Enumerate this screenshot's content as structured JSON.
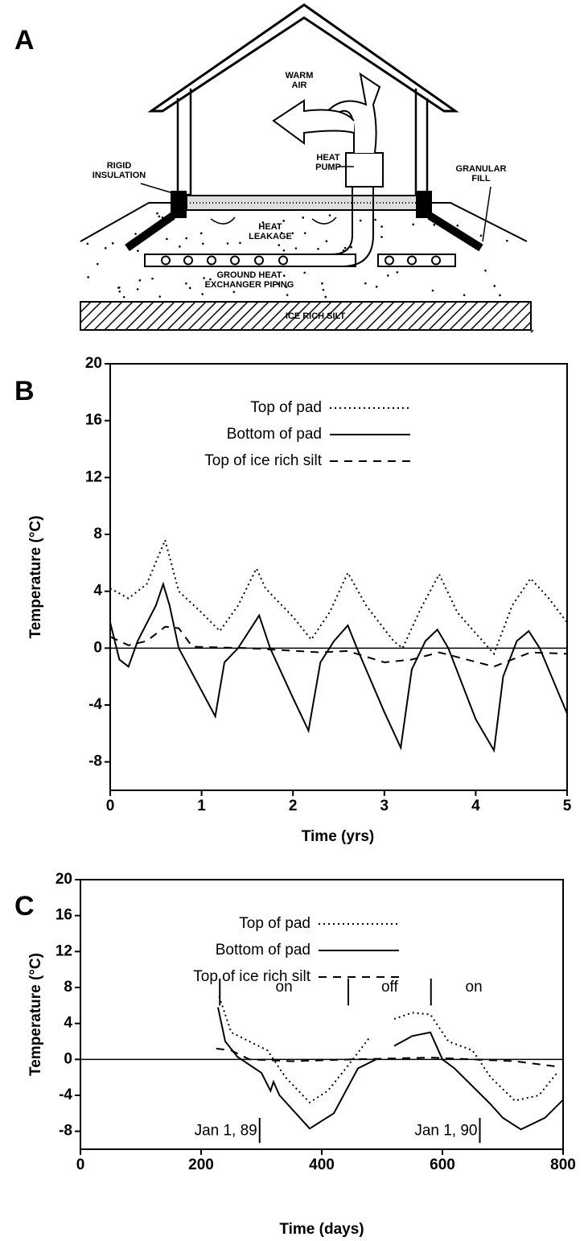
{
  "diagram": {
    "panel": "A",
    "labels": {
      "warm_air": [
        "WARM",
        "AIR"
      ],
      "heat_pump": [
        "HEAT",
        "PUMP"
      ],
      "rigid_insulation": [
        "RIGID",
        "INSULATION"
      ],
      "granular_fill": [
        "GRANULAR",
        "FILL"
      ],
      "heat_leakage": [
        "HEAT",
        "LEAKAGE"
      ],
      "piping": [
        "GROUND HEAT",
        "EXCHANGER PIPING"
      ],
      "silt": [
        "ICE RICH SILT"
      ]
    }
  },
  "chart_data": [
    {
      "type": "line",
      "panel": "B",
      "x_label": "Time (yrs)",
      "y_label": "Temperature (°C)",
      "xlim": [
        0,
        5
      ],
      "xticks": [
        0,
        1,
        2,
        3,
        4,
        5
      ],
      "ylim": [
        -10,
        20
      ],
      "yticks": [
        -8,
        -4,
        0,
        4,
        8,
        12,
        16,
        20
      ],
      "zero_line": true,
      "series": [
        {
          "name": "Top of pad",
          "color": "#000000",
          "style": "dotted",
          "x": [
            0,
            0.2,
            0.4,
            0.6,
            0.75,
            1.0,
            1.2,
            1.4,
            1.6,
            1.7,
            2.0,
            2.2,
            2.4,
            2.6,
            2.8,
            3.1,
            3.2,
            3.4,
            3.6,
            3.8,
            4.2,
            4.4,
            4.6,
            4.8,
            5
          ],
          "values": [
            4.2,
            3.5,
            4.5,
            7.6,
            4,
            2.5,
            1.2,
            3,
            5.6,
            4.2,
            2.2,
            0.6,
            2.5,
            5.3,
            3,
            0.5,
            0,
            2.8,
            5.2,
            2.5,
            -0.4,
            3,
            4.9,
            3.5,
            1.8
          ]
        },
        {
          "name": "Bottom of pad",
          "color": "#000000",
          "style": "solid",
          "x": [
            0,
            0.1,
            0.2,
            0.3,
            0.5,
            0.58,
            0.65,
            0.75,
            1.0,
            1.15,
            1.25,
            1.4,
            1.55,
            1.63,
            1.75,
            2.0,
            2.17,
            2.3,
            2.45,
            2.6,
            2.7,
            3.0,
            3.18,
            3.3,
            3.45,
            3.58,
            3.7,
            4.0,
            4.2,
            4.3,
            4.45,
            4.58,
            4.7,
            5
          ],
          "values": [
            1.8,
            -0.8,
            -1.3,
            0.5,
            3,
            4.5,
            3,
            0,
            -3,
            -4.8,
            -1,
            0,
            1.5,
            2.3,
            0,
            -3.5,
            -5.8,
            -1,
            0.5,
            1.6,
            0,
            -4.5,
            -7,
            -1.5,
            0.5,
            1.3,
            0,
            -5,
            -7.2,
            -2,
            0.5,
            1.2,
            0,
            -4.6
          ]
        },
        {
          "name": "Top of ice rich silt",
          "color": "#000000",
          "style": "dashed",
          "x": [
            0,
            0.2,
            0.4,
            0.6,
            0.75,
            0.9,
            1.5,
            2.3,
            2.6,
            3.0,
            3.3,
            3.6,
            4.2,
            4.6,
            5
          ],
          "values": [
            0.8,
            0.2,
            0.5,
            1.5,
            1.4,
            0.1,
            0,
            -0.3,
            -0.2,
            -1,
            -0.8,
            -0.3,
            -1.3,
            -0.3,
            -0.4
          ]
        }
      ]
    },
    {
      "type": "line",
      "panel": "C",
      "x_label": "Time (days)",
      "y_label": "Temperature (°C)",
      "xlim": [
        0,
        800
      ],
      "xticks": [
        0,
        200,
        400,
        600,
        800
      ],
      "ylim": [
        -10,
        20
      ],
      "yticks": [
        -8,
        -4,
        0,
        4,
        8,
        12,
        16,
        20
      ],
      "zero_line": true,
      "phase_markers": [
        231,
        444,
        581
      ],
      "phases": [
        "on",
        "off",
        "on"
      ],
      "date_markers": [
        {
          "label": "Jan 1, 89",
          "x": 297
        },
        {
          "label": "Jan 1, 90",
          "x": 662
        }
      ],
      "series": [
        {
          "name": "Top of pad",
          "color": "#000000",
          "style": "dotted",
          "x": [
            230,
            250,
            280,
            310,
            340,
            380,
            410,
            440,
            480,
            500,
            520,
            550,
            580,
            610,
            650,
            680,
            720,
            760,
            790
          ],
          "values": [
            7,
            3,
            2,
            1,
            -2,
            -4.8,
            -3.5,
            -1,
            2.5,
            null,
            4.5,
            5.2,
            5,
            2,
            1,
            -2,
            -4.6,
            -4,
            -1.5
          ]
        },
        {
          "name": "Bottom of pad",
          "color": "#000000",
          "style": "solid",
          "x": [
            228,
            240,
            260,
            300,
            315,
            320,
            330,
            380,
            420,
            460,
            490,
            505,
            520,
            550,
            580,
            600,
            620,
            680,
            700,
            730,
            770,
            800
          ],
          "values": [
            5.8,
            2,
            0.3,
            -1.5,
            -3.5,
            -2.5,
            -4,
            -7.7,
            -6,
            -1,
            0,
            null,
            1.5,
            2.6,
            3,
            0,
            -1,
            -5,
            -6.5,
            -7.8,
            -6.5,
            -4.5
          ]
        },
        {
          "name": "Top of ice rich silt",
          "color": "#000000",
          "style": "dashed",
          "x": [
            225,
            250,
            280,
            350,
            450,
            580,
            650,
            720,
            790
          ],
          "values": [
            1.2,
            1,
            0,
            -0.2,
            0,
            0.2,
            0,
            -0.2,
            -0.8
          ]
        }
      ]
    }
  ]
}
